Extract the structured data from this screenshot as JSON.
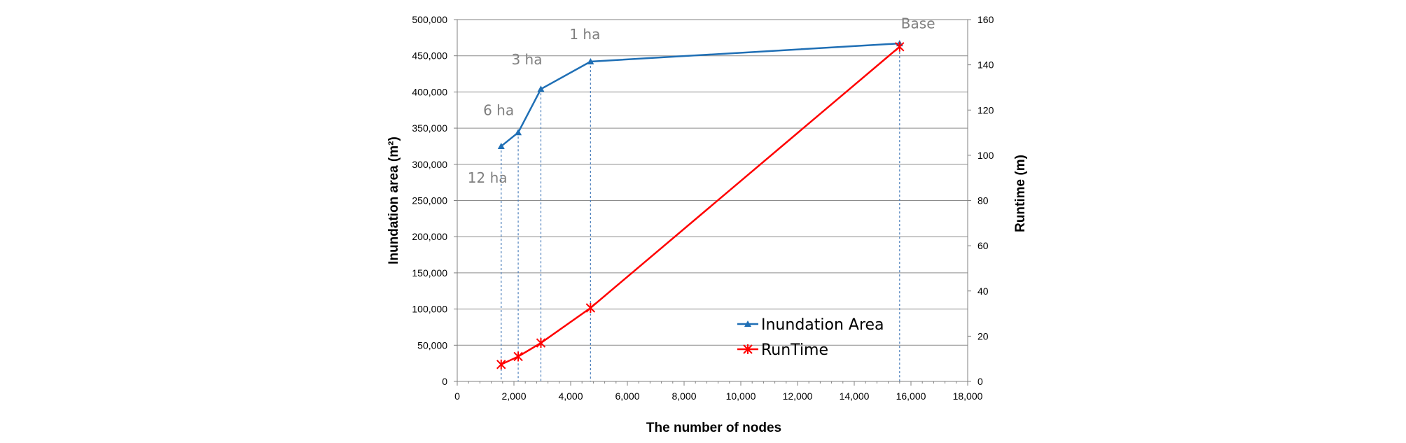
{
  "chart_data": {
    "type": "line",
    "xlabel": "The number of nodes",
    "ylabel_left": "Inundation area (m²)",
    "ylabel_right": "Runtime  (m)",
    "xlim": [
      0,
      18000
    ],
    "ylim_left": [
      0,
      500000
    ],
    "ylim_right": [
      0,
      160
    ],
    "x_ticks": [
      0,
      2000,
      4000,
      6000,
      8000,
      10000,
      12000,
      14000,
      16000,
      18000
    ],
    "x_tick_labels": [
      "0",
      "2,000",
      "4,000",
      "6,000",
      "8,000",
      "10,000",
      "12,000",
      "14,000",
      "16,000",
      "18,000"
    ],
    "y_left_ticks": [
      0,
      50000,
      100000,
      150000,
      200000,
      250000,
      300000,
      350000,
      400000,
      450000,
      500000
    ],
    "y_left_tick_labels": [
      "0",
      "50,000",
      "100,000",
      "150,000",
      "200,000",
      "250,000",
      "300,000",
      "350,000",
      "400,000",
      "450,000",
      "500,000"
    ],
    "y_right_ticks": [
      0,
      20,
      40,
      60,
      80,
      100,
      120,
      140,
      160
    ],
    "y_right_tick_labels": [
      "0",
      "20",
      "40",
      "60",
      "80",
      "100",
      "120",
      "140",
      "160"
    ],
    "grid": "horizontal",
    "legend_position": "bottom-right",
    "series": [
      {
        "name": "Inundation Area",
        "axis": "left",
        "color": "#1f6fb5",
        "marker": "triangle",
        "x": [
          1550,
          2150,
          2950,
          4700,
          15600
        ],
        "y": [
          325000,
          344000,
          404000,
          442000,
          467000
        ]
      },
      {
        "name": "RunTime",
        "axis": "right",
        "color": "#ff0000",
        "marker": "star",
        "x": [
          1550,
          2150,
          2950,
          4700,
          15600
        ],
        "y": [
          7.5,
          11,
          17,
          32.5,
          148
        ]
      }
    ],
    "annotations": [
      {
        "text": "12 ha",
        "x": 1550,
        "y": 300000
      },
      {
        "text": "6 ha",
        "x": 2150,
        "y": 370000
      },
      {
        "text": "3 ha",
        "x": 2950,
        "y": 440000
      },
      {
        "text": "1 ha",
        "x": 4700,
        "y": 470000
      },
      {
        "text": "Base",
        "x": 15600,
        "y": 485000
      }
    ],
    "dropline_color": "#4a7ebb"
  }
}
